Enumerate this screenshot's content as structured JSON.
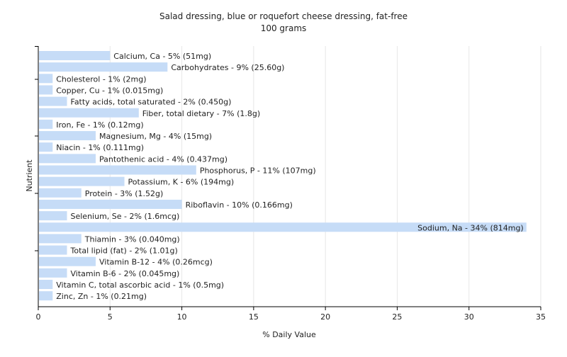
{
  "chart_data": {
    "type": "bar",
    "orientation": "horizontal",
    "title": "Salad dressing, blue or roquefort cheese dressing, fat-free",
    "subtitle": "100 grams",
    "xlabel": "% Daily Value",
    "ylabel": "Nutrient",
    "xlim": [
      0,
      35
    ],
    "xticks": [
      0,
      5,
      10,
      15,
      20,
      25,
      30,
      35
    ],
    "grid": "vertical",
    "bar_color": "#c6dcf7",
    "categories": [
      "Calcium, Ca",
      "Carbohydrates",
      "Cholesterol",
      "Copper, Cu",
      "Fatty acids, total saturated",
      "Fiber, total dietary",
      "Iron, Fe",
      "Magnesium, Mg",
      "Niacin",
      "Pantothenic acid",
      "Phosphorus, P",
      "Potassium, K",
      "Protein",
      "Riboflavin",
      "Selenium, Se",
      "Sodium, Na",
      "Thiamin",
      "Total lipid (fat)",
      "Vitamin B-12",
      "Vitamin B-6",
      "Vitamin C, total ascorbic acid",
      "Zinc, Zn"
    ],
    "values": [
      5,
      9,
      1,
      1,
      2,
      7,
      1,
      4,
      1,
      4,
      11,
      6,
      3,
      10,
      2,
      34,
      3,
      2,
      4,
      2,
      1,
      1
    ],
    "labels": [
      "Calcium, Ca - 5% (51mg)",
      "Carbohydrates - 9% (25.60g)",
      "Cholesterol - 1% (2mg)",
      "Copper, Cu - 1% (0.015mg)",
      "Fatty acids, total saturated - 2% (0.450g)",
      "Fiber, total dietary - 7% (1.8g)",
      "Iron, Fe - 1% (0.12mg)",
      "Magnesium, Mg - 4% (15mg)",
      "Niacin - 1% (0.111mg)",
      "Pantothenic acid - 4% (0.437mg)",
      "Phosphorus, P - 11% (107mg)",
      "Potassium, K - 6% (194mg)",
      "Protein - 3% (1.52g)",
      "Riboflavin - 10% (0.166mg)",
      "Selenium, Se - 2% (1.6mcg)",
      "Sodium, Na - 34% (814mg)",
      "Thiamin - 3% (0.040mg)",
      "Total lipid (fat) - 2% (1.01g)",
      "Vitamin B-12 - 4% (0.26mcg)",
      "Vitamin B-6 - 2% (0.045mg)",
      "Vitamin C, total ascorbic acid - 1% (0.5mg)",
      "Zinc, Zn - 1% (0.21mg)"
    ]
  }
}
